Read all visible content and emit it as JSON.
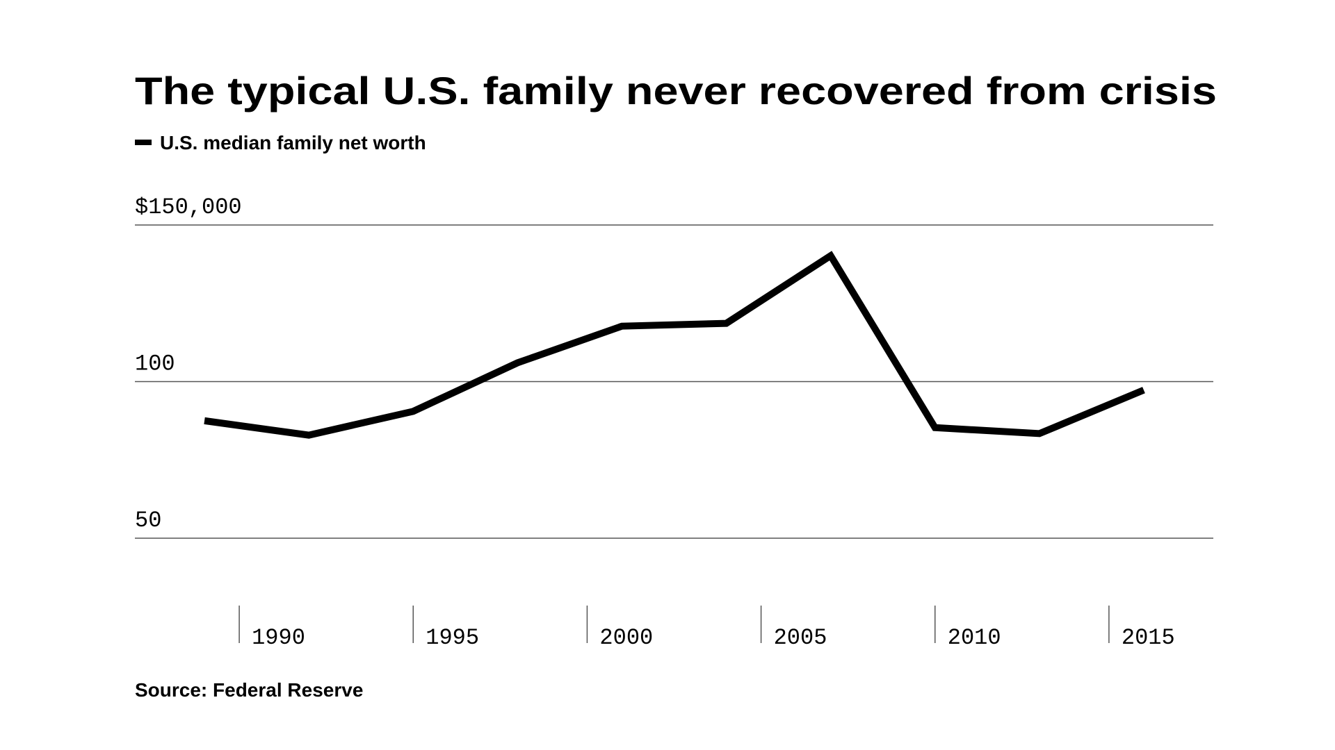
{
  "chart_data": {
    "type": "line",
    "title": "The typical U.S. family never recovered from crisis",
    "source": "Source: Federal Reserve",
    "x": [
      1989,
      1992,
      1995,
      1998,
      2001,
      2004,
      2007,
      2010,
      2013,
      2016
    ],
    "series": [
      {
        "name": "U.S. median family net worth",
        "color": "#000000",
        "values": [
          87.5,
          82.9,
          90.5,
          106,
          117.7,
          118.6,
          140.2,
          85.3,
          83.4,
          97.3
        ]
      }
    ],
    "xlim": [
      1987,
      2018
    ],
    "xticks": [
      1990,
      1995,
      2000,
      2005,
      2010,
      2015
    ],
    "ylim": [
      50,
      150
    ],
    "yticks": [
      50,
      100,
      {
        "value": 150,
        "label": "$150,000"
      }
    ],
    "grid": true
  }
}
